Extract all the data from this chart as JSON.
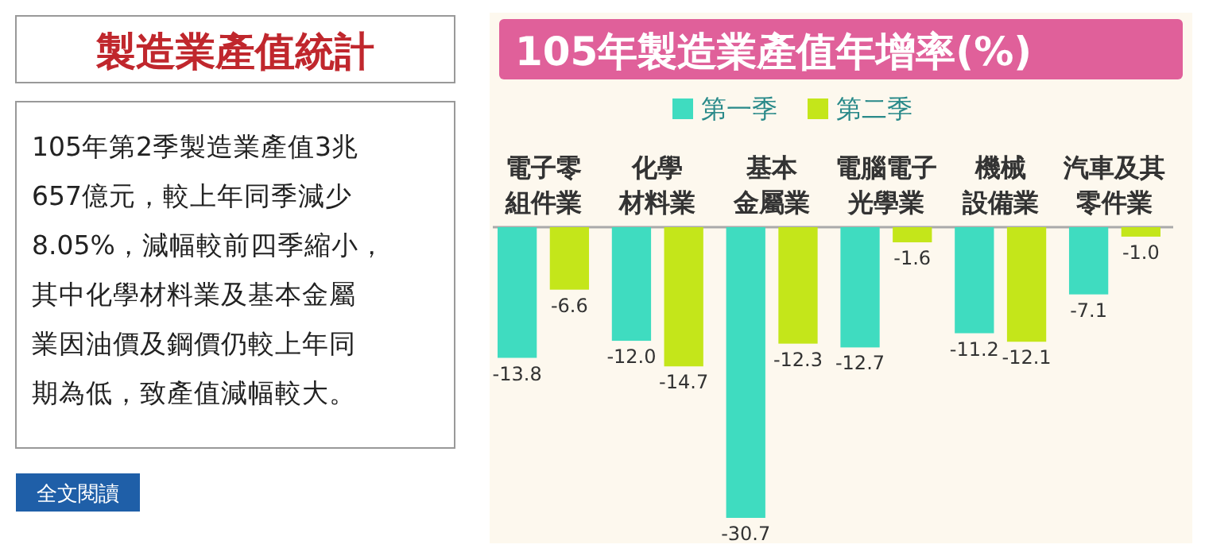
{
  "chart_data": [
    {
      "type": "other",
      "title": "製造業產值統計",
      "annotations": [
        "105年第2季製造業產值3兆",
        "657億元，較上年同季減少",
        "8.05%，減幅較前四季縮小，",
        "其中化學材料業及基本金屬",
        "業因油價及鋼價仍較上年同",
        "期為低，致產值減幅較大。",
        "全文閱讀"
      ]
    },
    {
      "type": "bar",
      "title": "105年製造業產值年增率(%)",
      "categories": [
        "電子零組件業",
        "化學材料業",
        "基本金屬業",
        "電腦電子光學業",
        "機械設備業",
        "汽車及其零件業"
      ],
      "series": [
        {
          "name": "第一季",
          "color": "#3fdcc0",
          "values": [
            -13.8,
            -12.0,
            -30.7,
            -12.7,
            -11.2,
            -7.1
          ],
          "value_labels": [
            "-13.8",
            "-12.0",
            "-30.7",
            "-12.7",
            "-11.2",
            "-7.1"
          ]
        },
        {
          "name": "第二季",
          "color": "#c4e61a",
          "values": [
            -6.6,
            -14.7,
            -12.3,
            -1.6,
            -12.1,
            -1.0
          ],
          "value_labels": [
            "-6.6",
            "-14.7",
            "-12.3",
            "-1.6",
            "-12.1",
            "-1.0"
          ]
        }
      ],
      "legend": "top",
      "grid": false
    }
  ]
}
